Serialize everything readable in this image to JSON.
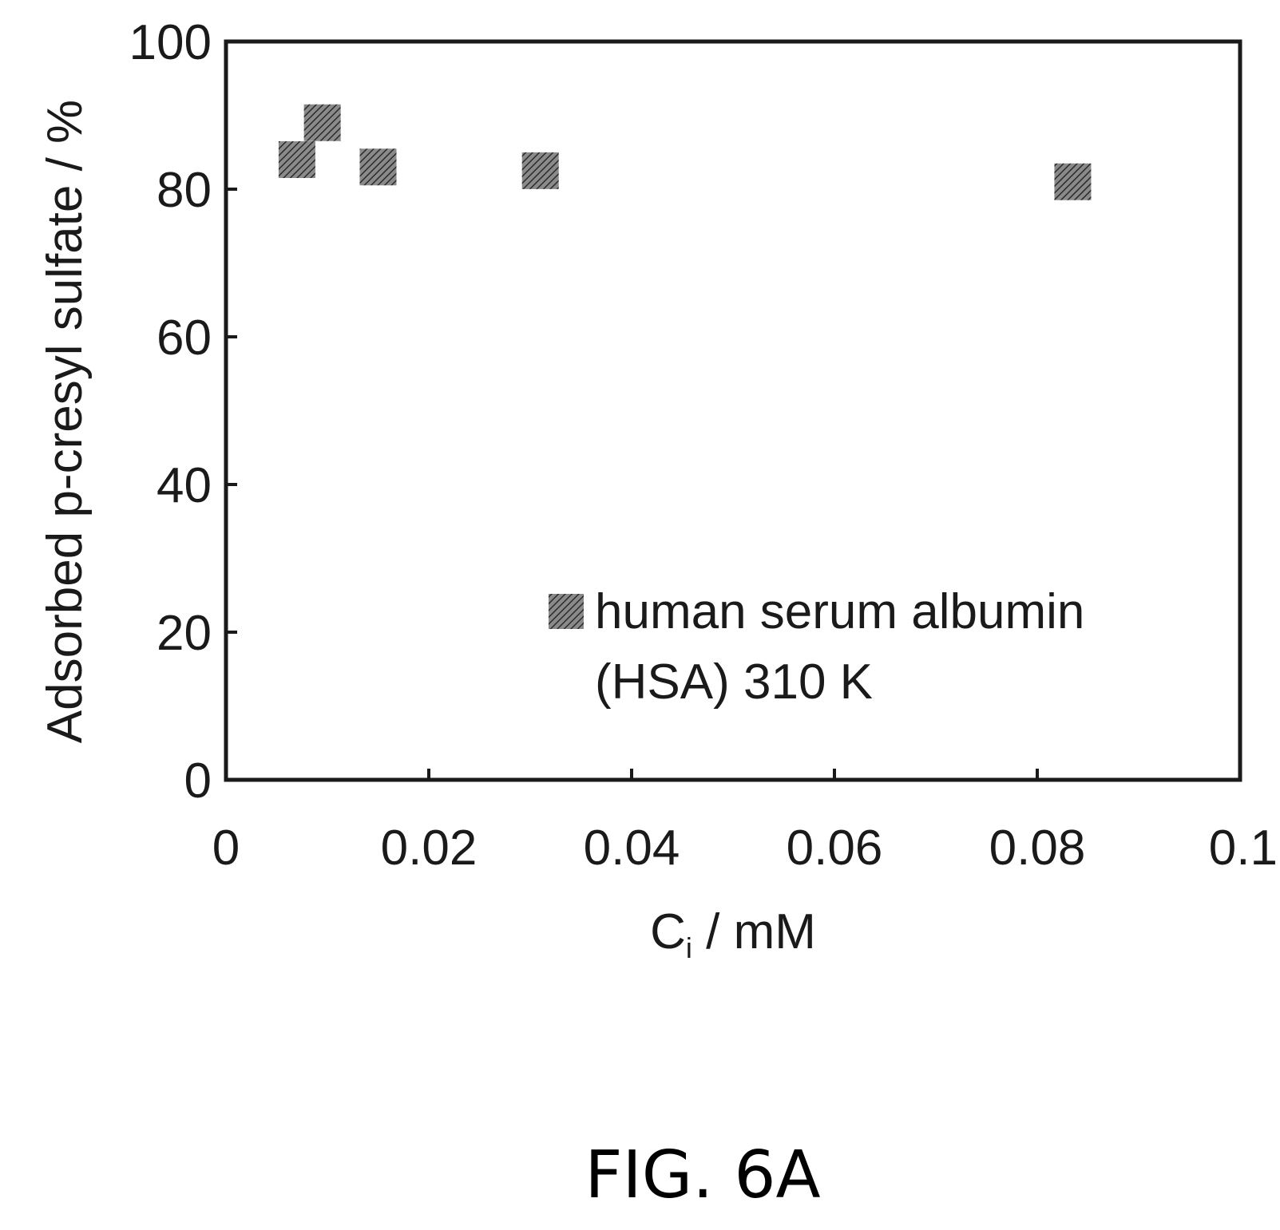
{
  "chart_data": {
    "type": "scatter",
    "xlabel_main": "C",
    "xlabel_sub": "i",
    "xlabel_unit": " / mM",
    "ylabel": "Adsorbed p-cresyl sulfate / %",
    "xlim": [
      0,
      0.1
    ],
    "ylim": [
      0,
      100
    ],
    "x_ticks": [
      0,
      0.02,
      0.04,
      0.06,
      0.08,
      0.1
    ],
    "x_tick_labels": [
      "0",
      "0.02",
      "0.04",
      "0.06",
      "0.08",
      "0.1"
    ],
    "y_ticks": [
      0,
      20,
      40,
      60,
      80,
      100
    ],
    "y_tick_labels": [
      "0",
      "20",
      "40",
      "60",
      "80",
      "100"
    ],
    "grid": false,
    "legend_position": "bottom-right",
    "series": [
      {
        "name_line1": "human serum albumin",
        "name_line2": "(HSA) 310 K",
        "marker": "square",
        "color": "#5a5a5a",
        "points": [
          {
            "x": 0.007,
            "y": 84
          },
          {
            "x": 0.0095,
            "y": 89
          },
          {
            "x": 0.015,
            "y": 83
          },
          {
            "x": 0.031,
            "y": 82.5
          },
          {
            "x": 0.0835,
            "y": 81
          }
        ]
      }
    ]
  },
  "caption": "FIG. 6A"
}
